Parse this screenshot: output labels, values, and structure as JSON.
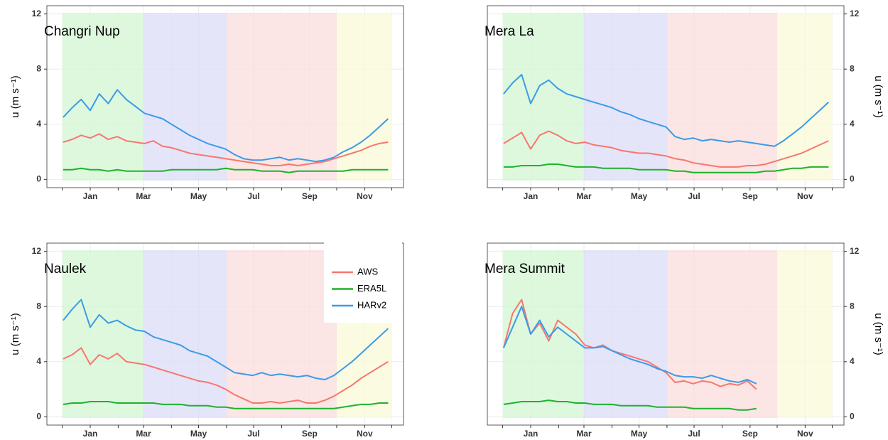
{
  "chart_data": [
    {
      "type": "line",
      "title": "Changri Nup",
      "y_label": "u (m s⁻¹)",
      "yaxis_side": "left",
      "x": [
        -30,
        -20,
        -10,
        0,
        10,
        20,
        30,
        40,
        50,
        60,
        70,
        80,
        90,
        100,
        110,
        120,
        130,
        140,
        150,
        160,
        170,
        180,
        190,
        200,
        210,
        220,
        230,
        240,
        250,
        260,
        270,
        280,
        290,
        300,
        310,
        320,
        330
      ],
      "xlim": [
        -48,
        347
      ],
      "xticks": [
        {
          "value": 0,
          "label": "Jan"
        },
        {
          "value": 59,
          "label": "Mar"
        },
        {
          "value": 120,
          "label": "May"
        },
        {
          "value": 181,
          "label": "Jul"
        },
        {
          "value": 243,
          "label": "Sep"
        },
        {
          "value": 304,
          "label": "Nov"
        }
      ],
      "xminor": [
        -31,
        31,
        90,
        151,
        212,
        273,
        334
      ],
      "ylim": [
        -0.6,
        12.6
      ],
      "yticks": [
        0,
        4,
        8,
        12
      ],
      "grid": true,
      "shading": [
        {
          "start": -31,
          "end": 59,
          "color": "#d3f5d3"
        },
        {
          "start": 59,
          "end": 151,
          "color": "#dcdcf8"
        },
        {
          "start": 151,
          "end": 273,
          "color": "#fadcdc"
        },
        {
          "start": 273,
          "end": 334,
          "color": "#f9f9d8"
        }
      ],
      "series": [
        {
          "color": "#f8766d",
          "values": [
            2.7,
            2.9,
            3.2,
            3.0,
            3.3,
            2.9,
            3.1,
            2.8,
            2.7,
            2.6,
            2.8,
            2.4,
            2.3,
            2.1,
            1.9,
            1.8,
            1.7,
            1.6,
            1.5,
            1.4,
            1.3,
            1.2,
            1.1,
            1.0,
            1.0,
            1.1,
            1.0,
            1.1,
            1.2,
            1.3,
            1.5,
            1.7,
            1.9,
            2.1,
            2.4,
            2.6,
            2.7
          ]
        },
        {
          "color": "#1db32c",
          "values": [
            0.7,
            0.7,
            0.8,
            0.7,
            0.7,
            0.6,
            0.7,
            0.6,
            0.6,
            0.6,
            0.6,
            0.6,
            0.7,
            0.7,
            0.7,
            0.7,
            0.7,
            0.7,
            0.8,
            0.7,
            0.7,
            0.7,
            0.6,
            0.6,
            0.6,
            0.5,
            0.6,
            0.6,
            0.6,
            0.6,
            0.6,
            0.6,
            0.7,
            0.7,
            0.7,
            0.7,
            0.7
          ]
        },
        {
          "color": "#3a9be8",
          "values": [
            4.5,
            5.2,
            5.8,
            5.0,
            6.2,
            5.5,
            6.5,
            5.8,
            5.3,
            4.8,
            4.6,
            4.4,
            4.0,
            3.6,
            3.2,
            2.9,
            2.6,
            2.4,
            2.2,
            1.8,
            1.5,
            1.4,
            1.4,
            1.5,
            1.6,
            1.4,
            1.5,
            1.4,
            1.3,
            1.4,
            1.6,
            2.0,
            2.3,
            2.7,
            3.2,
            3.8,
            4.4
          ]
        }
      ]
    },
    {
      "type": "line",
      "title": "Mera La",
      "y_label": "u (m s⁻¹)",
      "yaxis_side": "right",
      "x": [
        -30,
        -20,
        -10,
        0,
        10,
        20,
        30,
        40,
        50,
        60,
        70,
        80,
        90,
        100,
        110,
        120,
        130,
        140,
        150,
        160,
        170,
        180,
        190,
        200,
        210,
        220,
        230,
        240,
        250,
        260,
        270,
        280,
        290,
        300,
        310,
        320,
        330
      ],
      "xlim": [
        -48,
        347
      ],
      "xticks": [
        {
          "value": 0,
          "label": "Jan"
        },
        {
          "value": 59,
          "label": "Mar"
        },
        {
          "value": 120,
          "label": "May"
        },
        {
          "value": 181,
          "label": "Jul"
        },
        {
          "value": 243,
          "label": "Sep"
        },
        {
          "value": 304,
          "label": "Nov"
        }
      ],
      "xminor": [
        -31,
        31,
        90,
        151,
        212,
        273,
        334
      ],
      "ylim": [
        -0.6,
        12.6
      ],
      "yticks": [
        0,
        4,
        8,
        12
      ],
      "grid": true,
      "shading": [
        {
          "start": -31,
          "end": 59,
          "color": "#d3f5d3"
        },
        {
          "start": 59,
          "end": 151,
          "color": "#dcdcf8"
        },
        {
          "start": 151,
          "end": 273,
          "color": "#fadcdc"
        },
        {
          "start": 273,
          "end": 334,
          "color": "#f9f9d8"
        }
      ],
      "series": [
        {
          "color": "#f8766d",
          "values": [
            2.6,
            3.0,
            3.4,
            2.2,
            3.2,
            3.5,
            3.2,
            2.8,
            2.6,
            2.7,
            2.5,
            2.4,
            2.3,
            2.1,
            2.0,
            1.9,
            1.9,
            1.8,
            1.7,
            1.5,
            1.4,
            1.2,
            1.1,
            1.0,
            0.9,
            0.9,
            0.9,
            1.0,
            1.0,
            1.1,
            1.3,
            1.5,
            1.7,
            1.9,
            2.2,
            2.5,
            2.8
          ]
        },
        {
          "color": "#1db32c",
          "values": [
            0.9,
            0.9,
            1.0,
            1.0,
            1.0,
            1.1,
            1.1,
            1.0,
            0.9,
            0.9,
            0.9,
            0.8,
            0.8,
            0.8,
            0.8,
            0.7,
            0.7,
            0.7,
            0.7,
            0.6,
            0.6,
            0.5,
            0.5,
            0.5,
            0.5,
            0.5,
            0.5,
            0.5,
            0.5,
            0.6,
            0.6,
            0.7,
            0.8,
            0.8,
            0.9,
            0.9,
            0.9
          ]
        },
        {
          "color": "#3a9be8",
          "values": [
            6.2,
            7.0,
            7.6,
            5.5,
            6.8,
            7.2,
            6.6,
            6.2,
            6.0,
            5.8,
            5.6,
            5.4,
            5.2,
            4.9,
            4.7,
            4.4,
            4.2,
            4.0,
            3.8,
            3.1,
            2.9,
            3.0,
            2.8,
            2.9,
            2.8,
            2.7,
            2.8,
            2.7,
            2.6,
            2.5,
            2.4,
            2.8,
            3.3,
            3.8,
            4.4,
            5.0,
            5.6
          ]
        }
      ]
    },
    {
      "type": "line",
      "title": "Naulek",
      "y_label": "u (m s⁻¹)",
      "yaxis_side": "left",
      "legend": "top-right",
      "x": [
        -30,
        -20,
        -10,
        0,
        10,
        20,
        30,
        40,
        50,
        60,
        70,
        80,
        90,
        100,
        110,
        120,
        130,
        140,
        150,
        160,
        170,
        180,
        190,
        200,
        210,
        220,
        230,
        240,
        250,
        260,
        270,
        280,
        290,
        300,
        310,
        320,
        330
      ],
      "xlim": [
        -48,
        347
      ],
      "xticks": [
        {
          "value": 0,
          "label": "Jan"
        },
        {
          "value": 59,
          "label": "Mar"
        },
        {
          "value": 120,
          "label": "May"
        },
        {
          "value": 181,
          "label": "Jul"
        },
        {
          "value": 243,
          "label": "Sep"
        },
        {
          "value": 304,
          "label": "Nov"
        }
      ],
      "xminor": [
        -31,
        31,
        90,
        151,
        212,
        273,
        334
      ],
      "ylim": [
        -0.6,
        12.6
      ],
      "yticks": [
        0,
        4,
        8,
        12
      ],
      "grid": true,
      "shading": [
        {
          "start": -31,
          "end": 59,
          "color": "#d3f5d3"
        },
        {
          "start": 59,
          "end": 151,
          "color": "#dcdcf8"
        },
        {
          "start": 151,
          "end": 273,
          "color": "#fadcdc"
        },
        {
          "start": 273,
          "end": 334,
          "color": "#f9f9d8"
        }
      ],
      "series": [
        {
          "name": "AWS",
          "color": "#f8766d",
          "values": [
            4.2,
            4.5,
            5.0,
            3.8,
            4.5,
            4.2,
            4.6,
            4.0,
            3.9,
            3.8,
            3.6,
            3.4,
            3.2,
            3.0,
            2.8,
            2.6,
            2.5,
            2.3,
            2.0,
            1.6,
            1.3,
            1.0,
            1.0,
            1.1,
            1.0,
            1.1,
            1.2,
            1.0,
            1.0,
            1.2,
            1.5,
            1.9,
            2.3,
            2.8,
            3.2,
            3.6,
            4.0
          ]
        },
        {
          "name": "ERA5L",
          "color": "#1db32c",
          "values": [
            0.9,
            1.0,
            1.0,
            1.1,
            1.1,
            1.1,
            1.0,
            1.0,
            1.0,
            1.0,
            1.0,
            0.9,
            0.9,
            0.9,
            0.8,
            0.8,
            0.8,
            0.7,
            0.7,
            0.6,
            0.6,
            0.6,
            0.6,
            0.6,
            0.6,
            0.6,
            0.6,
            0.6,
            0.6,
            0.6,
            0.6,
            0.7,
            0.8,
            0.9,
            0.9,
            1.0,
            1.0
          ]
        },
        {
          "name": "HARv2",
          "color": "#3a9be8",
          "values": [
            7.0,
            7.8,
            8.5,
            6.5,
            7.4,
            6.8,
            7.0,
            6.6,
            6.3,
            6.2,
            5.8,
            5.6,
            5.4,
            5.2,
            4.8,
            4.6,
            4.4,
            4.0,
            3.6,
            3.2,
            3.1,
            3.0,
            3.2,
            3.0,
            3.1,
            3.0,
            2.9,
            3.0,
            2.8,
            2.7,
            3.0,
            3.5,
            4.0,
            4.6,
            5.2,
            5.8,
            6.4
          ]
        }
      ]
    },
    {
      "type": "line",
      "title": "Mera Summit",
      "y_label": "u (m s⁻¹)",
      "yaxis_side": "right",
      "x": [
        -30,
        -20,
        -10,
        0,
        10,
        20,
        30,
        40,
        50,
        60,
        70,
        80,
        90,
        100,
        110,
        120,
        130,
        140,
        150,
        160,
        170,
        180,
        190,
        200,
        210,
        220,
        230,
        240,
        250,
        260,
        270,
        280,
        290,
        300,
        310,
        320,
        330
      ],
      "xlim": [
        -48,
        347
      ],
      "xticks": [
        {
          "value": 0,
          "label": "Jan"
        },
        {
          "value": 59,
          "label": "Mar"
        },
        {
          "value": 120,
          "label": "May"
        },
        {
          "value": 181,
          "label": "Jul"
        },
        {
          "value": 243,
          "label": "Sep"
        },
        {
          "value": 304,
          "label": "Nov"
        }
      ],
      "xminor": [
        -31,
        31,
        90,
        151,
        212,
        273,
        334
      ],
      "ylim": [
        -0.6,
        12.6
      ],
      "yticks": [
        0,
        4,
        8,
        12
      ],
      "grid": true,
      "shading": [
        {
          "start": -31,
          "end": 59,
          "color": "#d3f5d3"
        },
        {
          "start": 59,
          "end": 151,
          "color": "#dcdcf8"
        },
        {
          "start": 151,
          "end": 273,
          "color": "#fadcdc"
        },
        {
          "start": 273,
          "end": 334,
          "color": "#f9f9d8"
        }
      ],
      "series": [
        {
          "color": "#f8766d",
          "values": [
            5.0,
            7.5,
            8.5,
            6.0,
            6.8,
            5.5,
            7.0,
            6.5,
            6.0,
            5.2,
            5.0,
            5.2,
            4.8,
            4.6,
            4.4,
            4.2,
            4.0,
            3.6,
            3.2,
            2.5,
            2.6,
            2.4,
            2.6,
            2.5,
            2.2,
            2.4,
            2.3,
            2.6,
            2.0,
            null,
            null,
            null,
            null,
            null,
            null,
            null,
            null
          ]
        },
        {
          "color": "#1db32c",
          "values": [
            0.9,
            1.0,
            1.1,
            1.1,
            1.1,
            1.2,
            1.1,
            1.1,
            1.0,
            1.0,
            0.9,
            0.9,
            0.9,
            0.8,
            0.8,
            0.8,
            0.8,
            0.7,
            0.7,
            0.7,
            0.7,
            0.6,
            0.6,
            0.6,
            0.6,
            0.6,
            0.5,
            0.5,
            0.6,
            null,
            null,
            null,
            null,
            null,
            null,
            null,
            null
          ]
        },
        {
          "color": "#3a9be8",
          "values": [
            5.0,
            6.5,
            8.0,
            6.0,
            7.0,
            5.8,
            6.5,
            6.0,
            5.5,
            5.0,
            5.0,
            5.1,
            4.8,
            4.5,
            4.2,
            4.0,
            3.8,
            3.5,
            3.3,
            3.0,
            2.9,
            2.9,
            2.8,
            3.0,
            2.8,
            2.6,
            2.5,
            2.7,
            2.4,
            null,
            null,
            null,
            null,
            null,
            null,
            null,
            null
          ]
        }
      ]
    }
  ]
}
